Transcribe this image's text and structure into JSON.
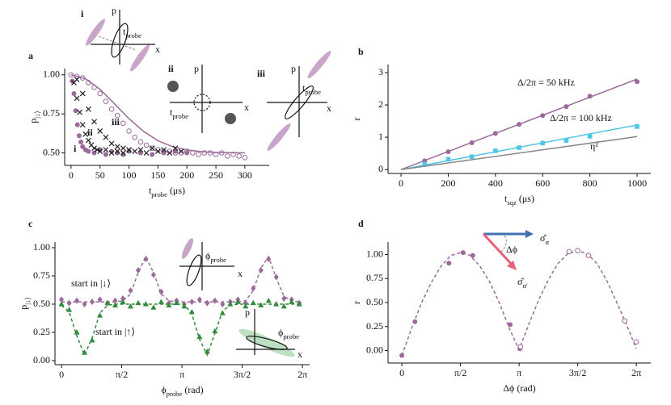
{
  "chart_data": [
    {
      "type": "scatter",
      "panel": "a",
      "xlabel": "t_{probe} (μs)",
      "ylabel": "p_{|↓⟩}",
      "xlim": [
        -11,
        342
      ],
      "ylim": [
        0.42,
        1.04
      ],
      "xticks": [
        0,
        50,
        100,
        150,
        200,
        250,
        300
      ],
      "yticks": [
        {
          "value": 0.5,
          "label": "0.50"
        },
        {
          "value": 0.75,
          "label": "0.75"
        },
        {
          "value": 1.0,
          "label": "1.00"
        }
      ],
      "annotations": [
        "i",
        "p",
        "x",
        "t_{probe}",
        "ii",
        "p",
        "x",
        "t_{probe}",
        "iii",
        "p",
        "x",
        "t_{probe}",
        "i",
        "ii",
        "iii"
      ],
      "series": [
        {
          "color": "#9b6a9b",
          "marker": "open",
          "x": [
            0,
            10,
            20,
            30,
            40,
            50,
            60,
            70,
            80,
            90,
            100,
            110,
            120,
            130,
            140,
            150,
            160,
            170,
            180,
            190,
            200,
            210,
            220,
            230,
            240,
            250,
            260,
            270,
            280,
            290,
            300
          ],
          "values": [
            1.0,
            0.99,
            0.98,
            0.95,
            0.92,
            0.88,
            0.83,
            0.78,
            0.74,
            0.69,
            0.64,
            0.6,
            0.57,
            0.55,
            0.53,
            0.52,
            0.51,
            0.51,
            0.5,
            0.5,
            0.51,
            0.5,
            0.49,
            0.5,
            0.5,
            0.49,
            0.5,
            0.48,
            0.49,
            0.48,
            0.47
          ]
        },
        {
          "color": "#9b6a9b",
          "marker": "line",
          "x": [
            0,
            25,
            50,
            75,
            100,
            125,
            150,
            175,
            200,
            225,
            250,
            275,
            300
          ],
          "values": [
            1.0,
            0.975,
            0.907,
            0.814,
            0.719,
            0.638,
            0.578,
            0.54,
            0.519,
            0.508,
            0.503,
            0.501,
            0.5
          ]
        },
        {
          "color": "#9b6a9b",
          "marker": "circle",
          "x": [
            2,
            5,
            8,
            11,
            14,
            17,
            20,
            25,
            30,
            40,
            50,
            60,
            70,
            80,
            90,
            100,
            120,
            140,
            160,
            180,
            200
          ],
          "values": [
            0.96,
            0.88,
            0.77,
            0.68,
            0.61,
            0.57,
            0.54,
            0.52,
            0.51,
            0.5,
            0.52,
            0.49,
            0.51,
            0.5,
            0.49,
            0.51,
            0.5,
            0.49,
            0.5,
            0.51,
            0.5
          ]
        },
        {
          "color": "#222222",
          "marker": "x",
          "x": [
            5,
            10,
            15,
            20,
            25,
            30,
            35,
            40,
            45,
            50,
            60,
            70,
            80,
            90,
            100
          ],
          "values": [
            0.95,
            0.85,
            0.76,
            0.68,
            0.62,
            0.58,
            0.55,
            0.53,
            0.52,
            0.51,
            0.52,
            0.5,
            0.51,
            0.5,
            0.52
          ]
        },
        {
          "color": "#222222",
          "marker": "x",
          "x": [
            10,
            20,
            30,
            40,
            50,
            60,
            70,
            80,
            90,
            100,
            110,
            120,
            130,
            140,
            150,
            160,
            170,
            180,
            190
          ],
          "values": [
            0.97,
            0.88,
            0.78,
            0.7,
            0.64,
            0.6,
            0.56,
            0.54,
            0.53,
            0.52,
            0.51,
            0.52,
            0.5,
            0.53,
            0.51,
            0.52,
            0.5,
            0.53,
            0.51
          ]
        }
      ]
    },
    {
      "type": "scatter",
      "panel": "b",
      "xlabel": "t_{sqz} (μs)",
      "ylabel": "r",
      "xlim": [
        -55,
        1058
      ],
      "ylim": [
        -0.12,
        3.25
      ],
      "xticks": [
        0,
        200,
        400,
        600,
        800,
        1000
      ],
      "yticks": [
        0,
        1,
        2,
        3
      ],
      "annotations": [],
      "series": [
        {
          "name": "Δ/2π = 50 kHz",
          "color": "#9b6a9b",
          "marker": "line",
          "x": [
            0,
            1000
          ],
          "values": [
            0,
            2.8
          ]
        },
        {
          "color": "#9b6a9b",
          "marker": "circle",
          "x": [
            100,
            200,
            300,
            400,
            500,
            600,
            700,
            800,
            1000
          ],
          "values": [
            0.27,
            0.55,
            0.83,
            1.12,
            1.4,
            1.67,
            1.95,
            2.27,
            2.72
          ]
        },
        {
          "name": "Δ/2π = 100 kHz",
          "color": "#4fc6e8",
          "marker": "line",
          "x": [
            0,
            1000
          ],
          "values": [
            0,
            1.38
          ]
        },
        {
          "color": "#4fc6e8",
          "marker": "square",
          "x": [
            100,
            200,
            300,
            400,
            500,
            600,
            700,
            800,
            1000
          ],
          "values": [
            0.17,
            0.32,
            0.4,
            0.58,
            0.68,
            0.82,
            0.9,
            1.03,
            1.33
          ]
        },
        {
          "name": "η²",
          "color": "#888888",
          "marker": "line",
          "x": [
            0,
            1000
          ],
          "values": [
            0,
            1.02
          ]
        }
      ]
    },
    {
      "type": "scatter",
      "panel": "c",
      "xlabel": "ϕ_{probe} (rad)",
      "ylabel": "p_{|↓⟩}",
      "xlim": [
        -0.17,
        6.47
      ],
      "ylim": [
        -0.036,
        1.05
      ],
      "xticks": [
        0,
        {
          "value": 1.5708,
          "label": "π/2"
        },
        {
          "value": 3.1416,
          "label": "π"
        },
        {
          "value": 4.7124,
          "label": "3π/2"
        },
        {
          "value": 6.2832,
          "label": "2π"
        }
      ],
      "yticks": [
        {
          "value": 0,
          "label": "0.00"
        },
        {
          "value": 0.25,
          "label": "0.25"
        },
        {
          "value": 0.5,
          "label": "0.50"
        },
        {
          "value": 0.75,
          "label": "0.75"
        },
        {
          "value": 1.0,
          "label": "1.00"
        }
      ],
      "annotations": [
        "ϕ_{probe}",
        "x",
        "p",
        "ϕ_{probe}",
        "x"
      ],
      "x": [
        0,
        0.2,
        0.4,
        0.6,
        0.8,
        1.0,
        1.2,
        1.4,
        1.6,
        1.8,
        2.0,
        2.2,
        2.4,
        2.6,
        2.8,
        3.0,
        3.2,
        3.4,
        3.6,
        3.8,
        4.0,
        4.2,
        4.4,
        4.6,
        4.8,
        5.0,
        5.2,
        5.4,
        5.6,
        5.8,
        6.0,
        6.2
      ],
      "series": [
        {
          "color": "#9b6a9b",
          "marker": "dash",
          "values": [
            0.52,
            0.52,
            0.52,
            0.52,
            0.52,
            0.52,
            0.52,
            0.52,
            0.53,
            0.59,
            0.78,
            0.92,
            0.78,
            0.59,
            0.53,
            0.52,
            0.52,
            0.52,
            0.52,
            0.52,
            0.52,
            0.52,
            0.52,
            0.52,
            0.53,
            0.62,
            0.82,
            0.92,
            0.73,
            0.57,
            0.53,
            0.52
          ]
        },
        {
          "name": "start in |↓⟩",
          "color": "#9b6a9b",
          "marker": "diamond",
          "values": [
            0.54,
            0.51,
            0.53,
            0.5,
            0.52,
            0.54,
            0.51,
            0.53,
            0.55,
            0.62,
            0.8,
            0.9,
            0.76,
            0.61,
            0.51,
            0.53,
            0.5,
            0.52,
            0.54,
            0.51,
            0.53,
            0.5,
            0.52,
            0.54,
            0.51,
            0.64,
            0.8,
            0.9,
            0.74,
            0.55,
            0.54,
            0.51
          ]
        },
        {
          "color": "#2e8b3a",
          "marker": "dash",
          "values": [
            0.49,
            0.43,
            0.22,
            0.05,
            0.2,
            0.42,
            0.49,
            0.5,
            0.5,
            0.5,
            0.5,
            0.5,
            0.5,
            0.5,
            0.5,
            0.5,
            0.5,
            0.41,
            0.19,
            0.05,
            0.24,
            0.44,
            0.49,
            0.5,
            0.5,
            0.5,
            0.5,
            0.5,
            0.5,
            0.5,
            0.5,
            0.5
          ]
        },
        {
          "name": "start in |↑⟩",
          "color": "#2e8b3a",
          "marker": "triangle",
          "values": [
            0.5,
            0.45,
            0.25,
            0.07,
            0.18,
            0.4,
            0.51,
            0.49,
            0.52,
            0.48,
            0.51,
            0.5,
            0.47,
            0.52,
            0.49,
            0.51,
            0.48,
            0.43,
            0.21,
            0.08,
            0.26,
            0.42,
            0.5,
            0.52,
            0.48,
            0.51,
            0.49,
            0.53,
            0.5,
            0.48,
            0.52,
            0.5
          ]
        }
      ]
    },
    {
      "type": "scatter",
      "panel": "d",
      "xlabel": "Δϕ (rad)",
      "ylabel": "r",
      "xlim": [
        -0.37,
        6.67
      ],
      "ylim": [
        -0.13,
        1.13
      ],
      "xticks": [
        0,
        {
          "value": 1.5708,
          "label": "π/2"
        },
        {
          "value": 3.1416,
          "label": "π"
        },
        {
          "value": 4.7124,
          "label": "3π/2"
        },
        {
          "value": 6.2832,
          "label": "2π"
        }
      ],
      "yticks": [
        {
          "value": 0,
          "label": "0.00"
        },
        {
          "value": 0.25,
          "label": "0.25"
        },
        {
          "value": 0.5,
          "label": "0.50"
        },
        {
          "value": 0.75,
          "label": "0.75"
        },
        {
          "value": 1.0,
          "label": "1.00"
        }
      ],
      "annotations": [
        "σ̂_{α}",
        "Δϕ",
        "σ̂_{α′}"
      ],
      "series": [
        {
          "color": "#9b6a9b",
          "marker": "dash",
          "x": [
            0,
            0.26,
            0.52,
            0.79,
            1.05,
            1.31,
            1.57,
            1.83,
            2.09,
            2.36,
            2.62,
            2.88,
            3.14,
            3.4,
            3.67,
            3.93,
            4.19,
            4.45,
            4.71,
            4.97,
            5.24,
            5.5,
            5.76,
            6.02,
            6.28
          ],
          "values": [
            -0.05,
            0.23,
            0.49,
            0.71,
            0.88,
            0.99,
            1.02,
            0.99,
            0.88,
            0.71,
            0.49,
            0.23,
            0.01,
            0.27,
            0.53,
            0.74,
            0.91,
            1.01,
            1.04,
            1.01,
            0.9,
            0.72,
            0.5,
            0.27,
            0.02
          ]
        },
        {
          "color": "#9b6a9b",
          "marker": "circle",
          "x": [
            0,
            0.35,
            1.26,
            1.64,
            1.9,
            2.9,
            3.16
          ],
          "values": [
            -0.05,
            0.3,
            0.91,
            1.02,
            0.99,
            0.27,
            0.02
          ]
        },
        {
          "color": "#9b6a9b",
          "marker": "open",
          "x": [
            3.18,
            4.48,
            4.71,
            5.0,
            5.97,
            6.28
          ],
          "values": [
            0.04,
            1.03,
            1.04,
            0.99,
            0.31,
            0.09
          ]
        }
      ]
    }
  ]
}
